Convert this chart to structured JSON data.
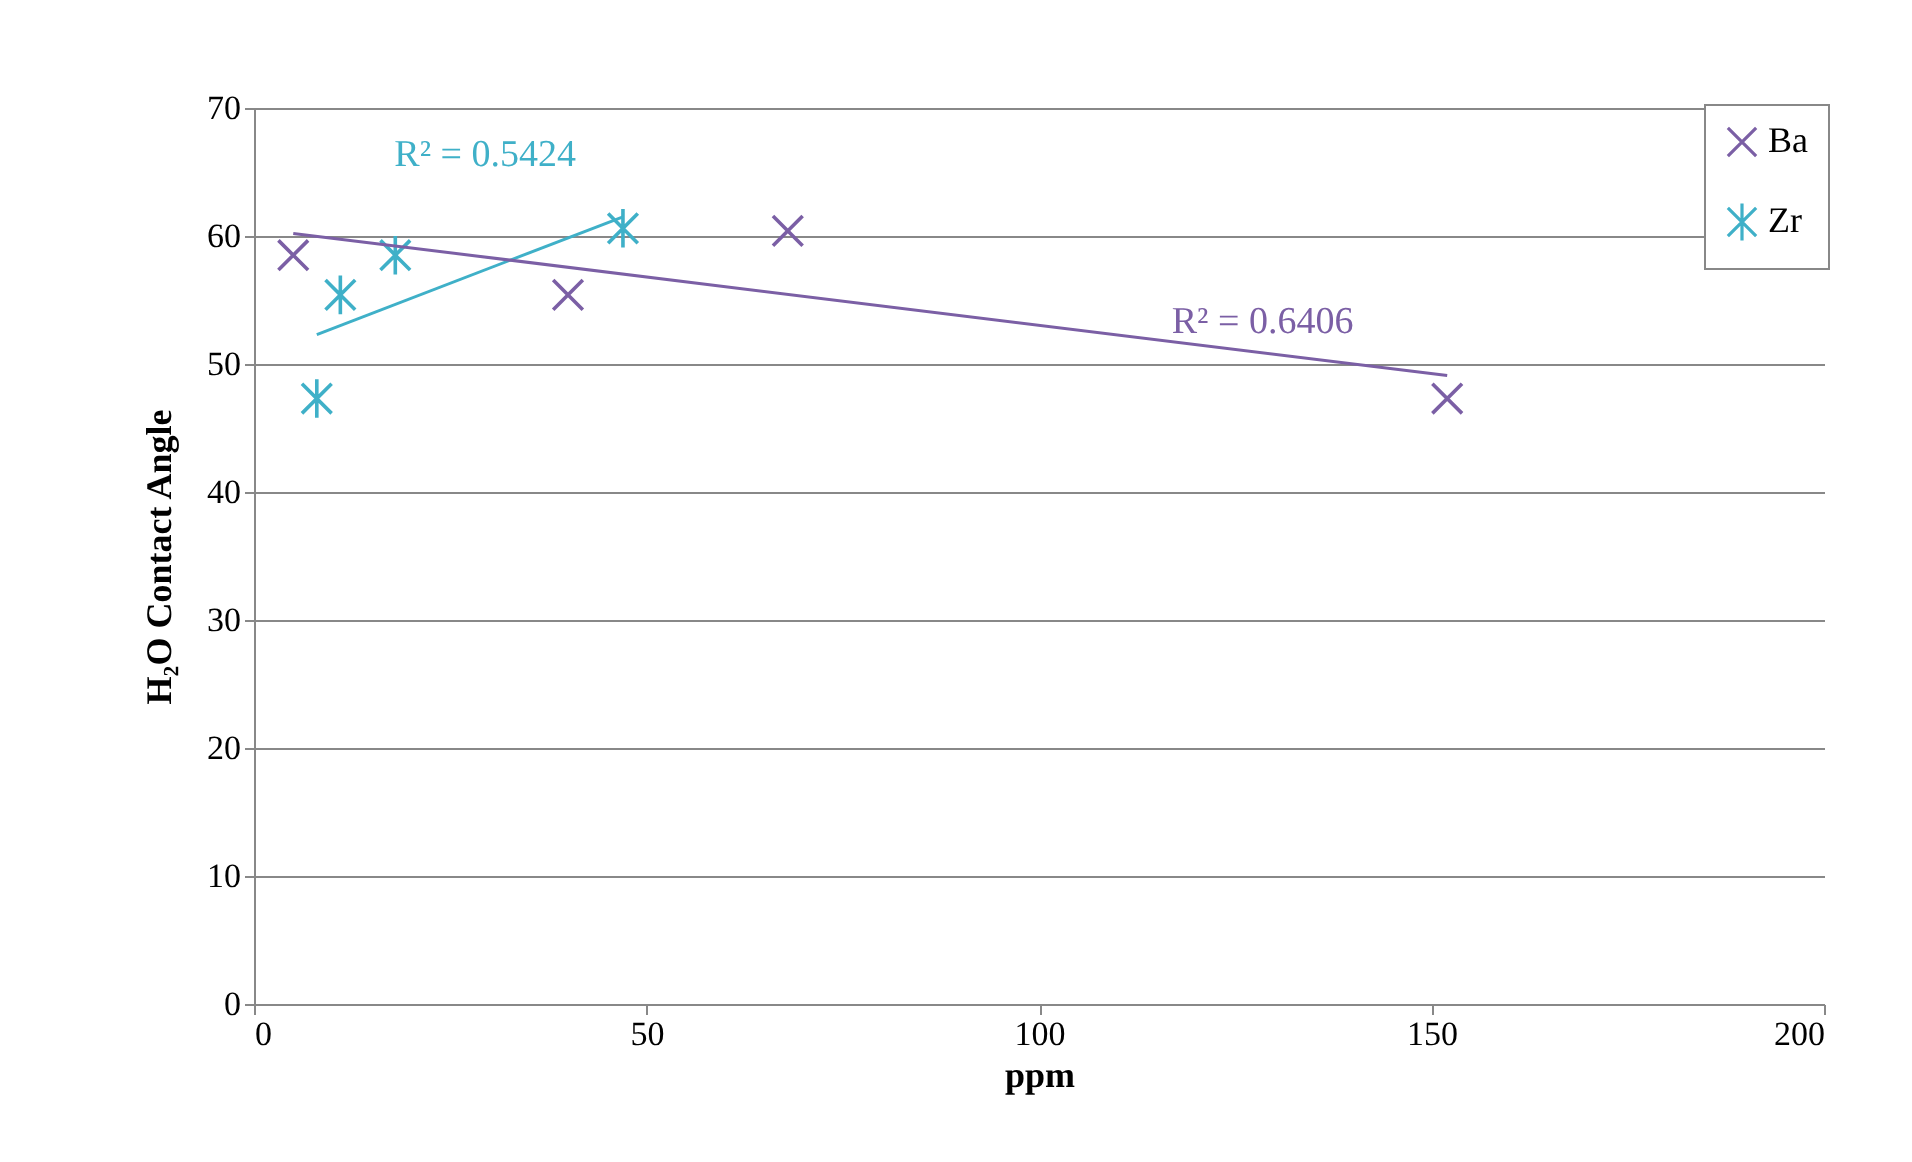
{
  "chart_data": {
    "type": "scatter",
    "xlabel": "ppm",
    "ylabel": "H₂O Contact Angle",
    "xlim": [
      0,
      200
    ],
    "xticks": [
      0,
      50,
      100,
      150,
      200
    ],
    "ylim": [
      0,
      70
    ],
    "yticks": [
      0,
      10,
      20,
      30,
      40,
      50,
      60,
      70
    ],
    "grid": "y",
    "legend": "top right",
    "series": [
      {
        "name": "Ba",
        "marker": "cross",
        "color": "#7b5fa5",
        "x": [
          5,
          40,
          68,
          152
        ],
        "values": [
          58.5,
          55.4,
          60.4,
          47.3
        ]
      },
      {
        "name": "Zr",
        "color": "#3fb0c8",
        "x": [
          8,
          11,
          18,
          47
        ],
        "values": [
          47.3,
          55.4,
          58.5,
          60.6
        ]
      },
      {
        "type": "line",
        "color": "#3fb0c8",
        "x": [
          8,
          47
        ],
        "values": [
          52.3,
          61.5
        ]
      },
      {
        "type": "line",
        "color": "#7b5fa5",
        "x": [
          5,
          152
        ],
        "values": [
          60.2,
          49.1
        ]
      }
    ],
    "annotations": [
      "R² = 0.5424",
      "R² = 0.6406"
    ]
  }
}
